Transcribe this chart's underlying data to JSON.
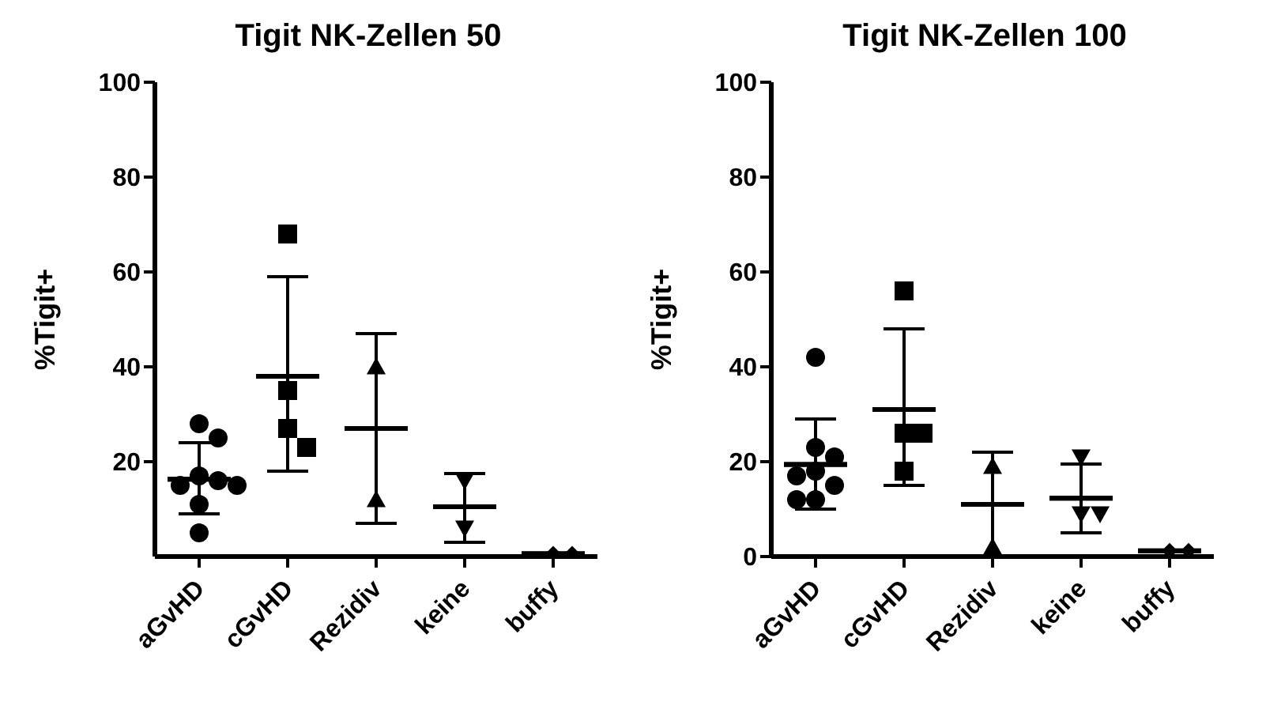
{
  "chart_data": [
    {
      "type": "scatter",
      "title": "Tigit NK-Zellen 50",
      "ylabel": "%Tigit+",
      "categories": [
        "aGvHD",
        "cGvHD",
        "Rezidiv",
        "keine",
        "buffy"
      ],
      "ylim": [
        0,
        100
      ],
      "yticks": [
        20,
        40,
        60,
        80,
        100
      ],
      "grid": false,
      "legend": false,
      "series": [
        {
          "color": "#000000",
          "marker": "circle",
          "x": [
            "aGvHD",
            "aGvHD",
            "aGvHD",
            "aGvHD",
            "aGvHD",
            "aGvHD",
            "aGvHD",
            "aGvHD"
          ],
          "values": [
            28,
            25,
            17,
            16,
            15,
            15,
            11,
            5
          ]
        },
        {
          "color": "#000000",
          "marker": "square",
          "x": [
            "cGvHD",
            "cGvHD",
            "cGvHD",
            "cGvHD"
          ],
          "values": [
            68,
            35,
            27,
            23
          ]
        },
        {
          "color": "#000000",
          "marker": "triangle",
          "x": [
            "Rezidiv",
            "Rezidiv"
          ],
          "values": [
            40,
            12
          ]
        },
        {
          "color": "#000000",
          "marker": "triangle-down",
          "x": [
            "keine",
            "keine"
          ],
          "values": [
            16,
            6
          ]
        },
        {
          "color": "#000000",
          "marker": "diamond",
          "x": [
            "buffy",
            "buffy"
          ],
          "values": [
            0.6,
            0.6
          ]
        },
        {
          "type": "box",
          "color": "#000000",
          "boxes": [
            {
              "low": 9,
              "q1": 16.3,
              "median": 16.3,
              "q3": 16.3,
              "high": 24
            },
            {
              "low": 18,
              "q1": 38,
              "median": 38,
              "q3": 38,
              "high": 59
            },
            {
              "low": 7,
              "q1": 27,
              "median": 27,
              "q3": 27,
              "high": 47
            },
            {
              "low": 3,
              "q1": 10.5,
              "median": 10.5,
              "q3": 10.5,
              "high": 17.5
            },
            {
              "low": 0.6,
              "q1": 0.6,
              "median": 0.6,
              "q3": 0.6,
              "high": 0.6
            }
          ]
        }
      ]
    },
    {
      "type": "scatter",
      "title": "Tigit NK-Zellen 100",
      "ylabel": "%Tigit+",
      "categories": [
        "aGvHD",
        "cGvHD",
        "Rezidiv",
        "keine",
        "buffy"
      ],
      "ylim": [
        0,
        100
      ],
      "yticks": [
        0,
        20,
        40,
        60,
        80,
        100
      ],
      "grid": false,
      "legend": false,
      "series": [
        {
          "color": "#000000",
          "marker": "circle",
          "x": [
            "aGvHD",
            "aGvHD",
            "aGvHD",
            "aGvHD",
            "aGvHD",
            "aGvHD",
            "aGvHD",
            "aGvHD"
          ],
          "values": [
            42,
            23,
            21,
            18,
            17,
            15,
            12,
            12
          ]
        },
        {
          "color": "#000000",
          "marker": "square",
          "x": [
            "cGvHD",
            "cGvHD",
            "cGvHD",
            "cGvHD"
          ],
          "values": [
            56,
            26,
            26,
            18
          ]
        },
        {
          "color": "#000000",
          "marker": "triangle",
          "x": [
            "Rezidiv",
            "Rezidiv"
          ],
          "values": [
            19,
            2
          ]
        },
        {
          "color": "#000000",
          "marker": "triangle-down",
          "x": [
            "keine",
            "keine",
            "keine"
          ],
          "values": [
            21,
            9,
            9
          ]
        },
        {
          "color": "#000000",
          "marker": "diamond",
          "x": [
            "buffy",
            "buffy"
          ],
          "values": [
            1.2,
            1.2
          ]
        },
        {
          "type": "box",
          "color": "#000000",
          "boxes": [
            {
              "low": 10,
              "q1": 19.4,
              "median": 19.4,
              "q3": 19.4,
              "high": 29
            },
            {
              "low": 15,
              "q1": 31,
              "median": 31,
              "q3": 31,
              "high": 48
            },
            {
              "low": 0,
              "q1": 11,
              "median": 11,
              "q3": 11,
              "high": 22
            },
            {
              "low": 5,
              "q1": 12.3,
              "median": 12.3,
              "q3": 12.3,
              "high": 19.5
            },
            {
              "low": 1.2,
              "q1": 1.2,
              "median": 1.2,
              "q3": 1.2,
              "high": 1.2
            }
          ]
        }
      ]
    }
  ]
}
